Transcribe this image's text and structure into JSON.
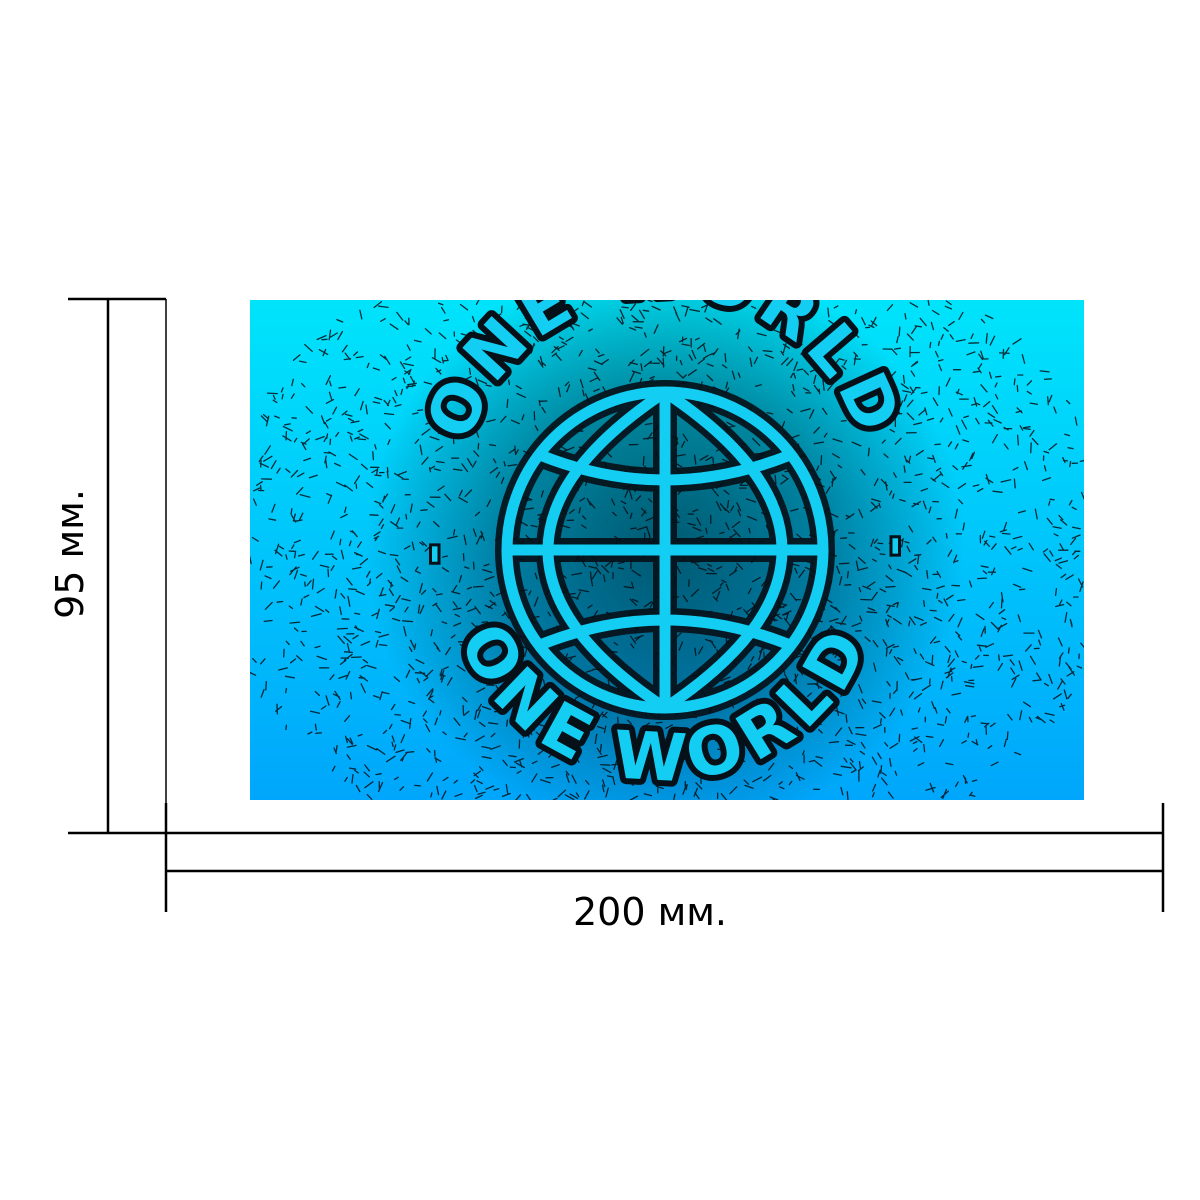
{
  "dimensions": {
    "width_label": "200 мм.",
    "height_label": "95 мм."
  },
  "print_image": {
    "emblem_text_top": "ONE WORLD",
    "emblem_text_bottom": "ONE WORLD",
    "separator": "-",
    "emblem_icon": "globe-icon",
    "texture": "scattered-ants",
    "gradient_top_color": "#00e4fb",
    "gradient_bottom_color": "#00a6fb",
    "ink_color": "#061018"
  },
  "colors": {
    "background": "#ffffff",
    "dimension_lines": "#000000"
  }
}
